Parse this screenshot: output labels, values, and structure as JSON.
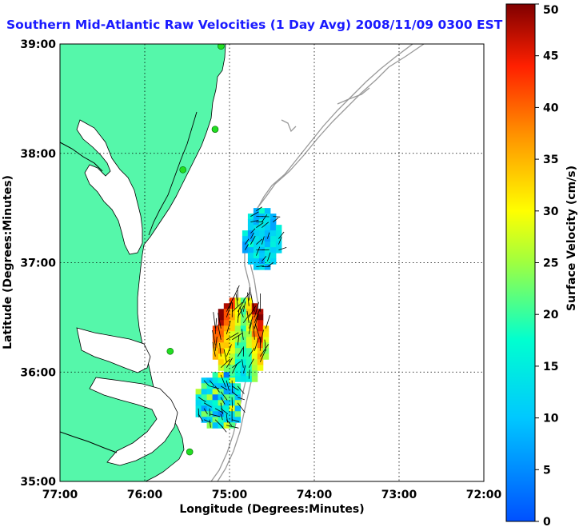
{
  "title": "Southern Mid-Atlantic Raw Velocities (1 Day Avg) 2008/11/09 0300 EST",
  "map": {
    "xlabel": "Longitude (Degrees:Minutes)",
    "ylabel": "Latitude (Degrees:Minutes)",
    "lon_ticks": [
      "77:00",
      "76:00",
      "75:00",
      "74:00",
      "73:00",
      "72:00"
    ],
    "lat_ticks": [
      "35:00",
      "36:00",
      "37:00",
      "38:00",
      "39:00"
    ],
    "lon_range": [
      -77,
      -72
    ],
    "lat_range": [
      35,
      39
    ],
    "colors": {
      "land": "#55f7aa",
      "coast": "#000000",
      "bathymetry": "#999999",
      "station": "#22dd22",
      "grid": "#000000",
      "title": "#1a1aff"
    }
  },
  "colorbar": {
    "label": "Surface Velocity (cm/s)",
    "min": 0,
    "max": 50,
    "ticks": [
      "0",
      "5",
      "10",
      "15",
      "20",
      "25",
      "30",
      "35",
      "40",
      "45",
      "50"
    ],
    "colormap": "jet"
  },
  "stations": [
    {
      "lon": -75.1,
      "lat": 38.98
    },
    {
      "lon": -75.17,
      "lat": 38.22
    },
    {
      "lon": -75.55,
      "lat": 37.85
    },
    {
      "lon": -75.7,
      "lat": 36.19
    },
    {
      "lon": -75.47,
      "lat": 35.27
    }
  ],
  "velocity_regions": [
    {
      "name": "north",
      "lon_min": -74.85,
      "lon_max": -74.45,
      "lat_min": 36.97,
      "lat_max": 37.5,
      "speeds": [
        12,
        14,
        10,
        15,
        11,
        13,
        9,
        12,
        14,
        10
      ]
    },
    {
      "name": "central",
      "lon_min": -75.2,
      "lon_max": -74.6,
      "lat_min": 35.95,
      "lat_max": 36.68,
      "speeds": [
        48,
        45,
        40,
        35,
        28,
        22,
        30,
        42,
        46,
        33
      ]
    },
    {
      "name": "south",
      "lon_min": -75.4,
      "lon_max": -74.9,
      "lat_min": 35.5,
      "lat_max": 36.0,
      "speeds": [
        9,
        12,
        15,
        20,
        28,
        7,
        11,
        24,
        18,
        10
      ]
    }
  ]
}
